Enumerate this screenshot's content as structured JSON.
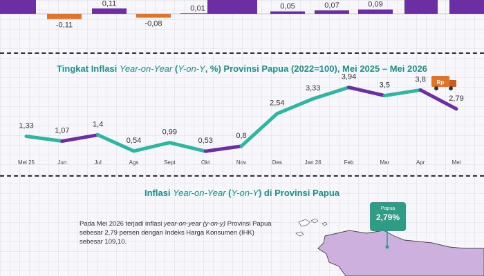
{
  "colors": {
    "purple": "#6b2fa3",
    "orange": "#e07428",
    "teal": "#2fb6a2",
    "title_teal": "#1e8f8a",
    "callout": "#2f9c86"
  },
  "chart_data": [
    {
      "type": "bar",
      "note": "top strip partially cropped; visible monthly values",
      "values": [
        null,
        0.11,
        -0.11,
        null,
        -0.08,
        0.01,
        null,
        0.05,
        0.07,
        0.09,
        null,
        null
      ],
      "labels": [
        "",
        "0,11",
        "-0,11",
        "",
        "-0,08",
        "0,01",
        "",
        "0,05",
        "0,07",
        "0,09",
        "",
        ""
      ]
    },
    {
      "type": "line",
      "title_parts": [
        "Tingkat Inflasi ",
        "Year-on-Year",
        " (",
        "Y-on-Y",
        ", %) Provinsi Papua (2022=100), Mei 2025 – Mei 2026"
      ],
      "categories": [
        "Mei 25",
        "Jun",
        "Jul",
        "Ags",
        "Sept",
        "Okt",
        "Nov",
        "Des",
        "Jan 26",
        "Feb",
        "Mar",
        "Apr",
        "Mei"
      ],
      "values": [
        1.33,
        1.07,
        1.4,
        0.54,
        0.99,
        0.53,
        0.8,
        2.54,
        3.33,
        3.94,
        3.5,
        3.8,
        2.79
      ],
      "value_labels": [
        "1,33",
        "1,07",
        "1,4",
        "0,54",
        "0,99",
        "0,53",
        "0,8",
        "2,54",
        "3,33",
        "3,94",
        "3,5",
        "3,8",
        "2,79"
      ],
      "segment_colors": [
        "teal",
        "purple",
        "teal",
        "teal",
        "teal",
        "purple",
        "teal",
        "teal",
        "teal",
        "purple",
        "teal",
        "purple"
      ]
    }
  ],
  "map_section": {
    "title_parts": [
      "Inflasi ",
      "Year-on-Year",
      " (",
      "Y-on-Y",
      ") di Provinsi Papua"
    ],
    "text_parts": [
      "Pada Mei 2026 terjadi inflasi ",
      "year-on-year (y-on-y)",
      " Provinsi Papua sebesar 2,79 persen dengan Indeks Harga Konsumen (IHK) sebesar 109,10."
    ],
    "callout_label": "Papua",
    "callout_value": "2,79%"
  },
  "truck_icon_text": "Rp"
}
